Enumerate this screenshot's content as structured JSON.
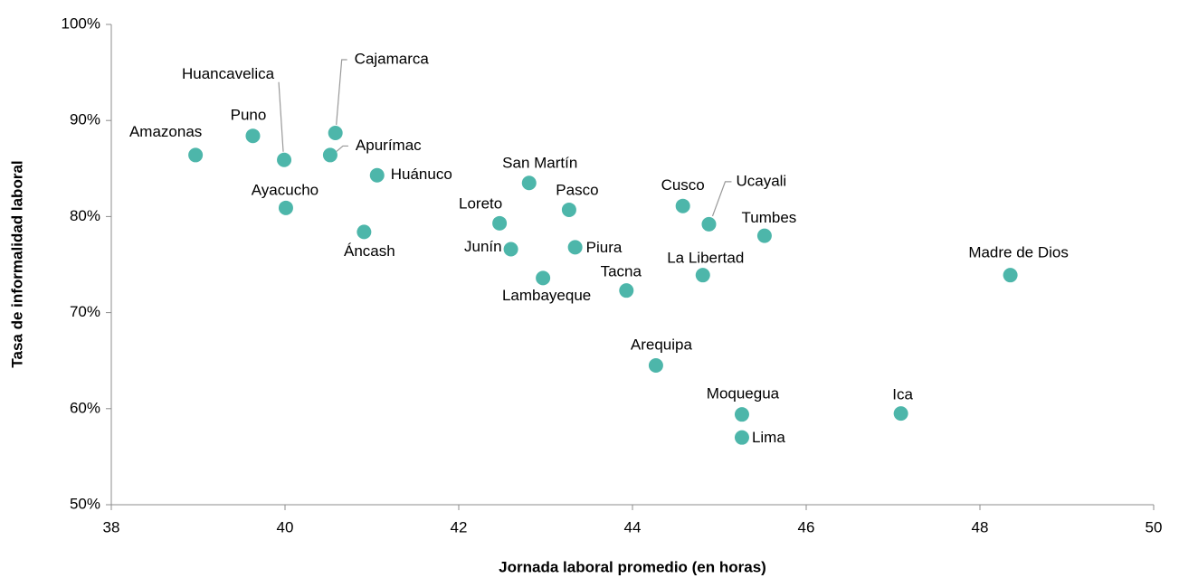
{
  "chart_data": {
    "type": "scatter",
    "x_label": "Jornada laboral promedio (en horas)",
    "y_label": "Tasa de informalidad laboral",
    "color": "#4db6aa",
    "labels": [
      "Amazonas",
      "Puno",
      "Huancavelica",
      "Cajamarca",
      "Apurímac",
      "Huánuco",
      "Ayacucho",
      "Áncash",
      "San Martín",
      "Loreto",
      "Pasco",
      "Junín",
      "Piura",
      "Lambayeque",
      "Tacna",
      "Cusco",
      "Ucayali",
      "Tumbes",
      "La Libertad",
      "Madre de Dios",
      "Arequipa",
      "Moquegua",
      "Lima",
      "Ica"
    ],
    "x": [
      38.97,
      39.63,
      39.99,
      40.58,
      40.52,
      41.06,
      40.01,
      40.91,
      42.81,
      42.47,
      43.27,
      42.6,
      43.34,
      42.97,
      43.93,
      44.58,
      44.88,
      45.52,
      44.81,
      48.35,
      44.27,
      45.26,
      45.26,
      47.09
    ],
    "values": [
      86.4,
      88.4,
      85.9,
      88.7,
      86.4,
      84.3,
      80.9,
      78.4,
      83.5,
      79.3,
      80.7,
      76.6,
      76.8,
      73.6,
      72.3,
      81.1,
      79.2,
      78.0,
      73.9,
      73.9,
      64.5,
      59.4,
      57.0,
      59.5
    ],
    "xlim": [
      38,
      50
    ],
    "xticks": [
      38,
      40,
      42,
      44,
      46,
      48,
      50
    ],
    "ylim": [
      50,
      100
    ],
    "yticks": [
      {
        "value": 50,
        "label": "50%"
      },
      {
        "value": 60,
        "label": "60%"
      },
      {
        "value": 70,
        "label": "70%"
      },
      {
        "value": 80,
        "label": "80%"
      },
      {
        "value": 90,
        "label": "90%"
      },
      {
        "value": 100,
        "label": "100%"
      }
    ]
  }
}
